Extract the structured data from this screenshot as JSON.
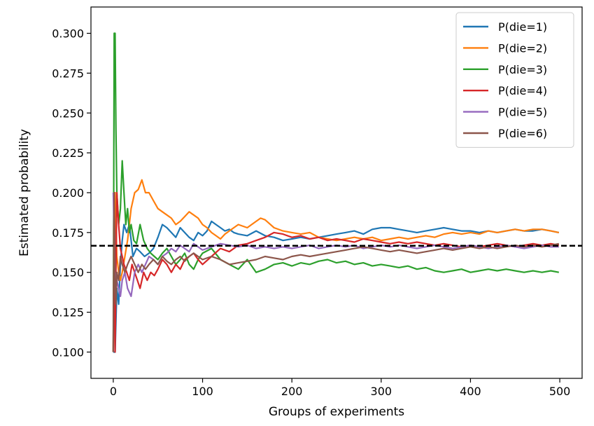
{
  "chart_data": {
    "type": "line",
    "xlabel": "Groups of experiments",
    "ylabel": "Estimated probability",
    "xlim": [
      -25,
      525
    ],
    "ylim": [
      0.0835,
      0.3165
    ],
    "xticks": [
      0,
      100,
      200,
      300,
      400,
      500
    ],
    "xtick_labels": [
      "0",
      "100",
      "200",
      "300",
      "400",
      "500"
    ],
    "yticks": [
      0.1,
      0.125,
      0.15,
      0.175,
      0.2,
      0.225,
      0.25,
      0.275,
      0.3
    ],
    "ytick_labels": [
      "0.100",
      "0.125",
      "0.150",
      "0.175",
      "0.200",
      "0.225",
      "0.250",
      "0.275",
      "0.300"
    ],
    "legend_position": "top-right",
    "reference_line": {
      "y": 0.1667,
      "style": "dashed",
      "color": "#000000"
    },
    "series": [
      {
        "name": "P(die=1)",
        "color": "#1f77b4",
        "x": [
          0,
          2,
          4,
          6,
          8,
          10,
          12,
          15,
          18,
          22,
          26,
          30,
          35,
          40,
          45,
          50,
          55,
          60,
          65,
          70,
          75,
          80,
          85,
          90,
          95,
          100,
          105,
          110,
          115,
          120,
          125,
          130,
          135,
          140,
          150,
          160,
          170,
          180,
          190,
          200,
          210,
          220,
          230,
          240,
          250,
          260,
          270,
          280,
          290,
          300,
          310,
          320,
          330,
          340,
          350,
          360,
          370,
          380,
          390,
          400,
          410,
          420,
          430,
          440,
          450,
          460,
          470,
          480,
          490,
          499
        ],
        "y": [
          0.1,
          0.1,
          0.14,
          0.13,
          0.155,
          0.17,
          0.18,
          0.175,
          0.18,
          0.16,
          0.165,
          0.163,
          0.16,
          0.162,
          0.165,
          0.172,
          0.18,
          0.178,
          0.175,
          0.172,
          0.178,
          0.175,
          0.172,
          0.17,
          0.175,
          0.173,
          0.176,
          0.182,
          0.18,
          0.178,
          0.176,
          0.177,
          0.175,
          0.174,
          0.173,
          0.176,
          0.173,
          0.172,
          0.17,
          0.171,
          0.172,
          0.171,
          0.172,
          0.173,
          0.174,
          0.175,
          0.176,
          0.174,
          0.177,
          0.178,
          0.178,
          0.177,
          0.176,
          0.175,
          0.176,
          0.177,
          0.178,
          0.177,
          0.176,
          0.176,
          0.175,
          0.176,
          0.175,
          0.176,
          0.177,
          0.176,
          0.176,
          0.177,
          0.176,
          0.175
        ]
      },
      {
        "name": "P(die=2)",
        "color": "#ff7f0e",
        "x": [
          0,
          2,
          4,
          6,
          8,
          10,
          13,
          16,
          20,
          24,
          28,
          32,
          36,
          40,
          45,
          50,
          55,
          60,
          65,
          70,
          75,
          80,
          85,
          90,
          95,
          100,
          105,
          110,
          115,
          120,
          125,
          130,
          135,
          140,
          150,
          160,
          165,
          170,
          180,
          190,
          200,
          210,
          220,
          230,
          240,
          250,
          260,
          270,
          280,
          290,
          300,
          310,
          320,
          330,
          340,
          350,
          360,
          370,
          380,
          390,
          400,
          410,
          420,
          430,
          440,
          450,
          460,
          470,
          480,
          490,
          499
        ],
        "y": [
          0.1,
          0.2,
          0.16,
          0.15,
          0.145,
          0.15,
          0.16,
          0.17,
          0.19,
          0.2,
          0.202,
          0.208,
          0.2,
          0.2,
          0.195,
          0.19,
          0.188,
          0.186,
          0.184,
          0.18,
          0.182,
          0.185,
          0.188,
          0.186,
          0.184,
          0.18,
          0.178,
          0.175,
          0.173,
          0.171,
          0.174,
          0.176,
          0.178,
          0.18,
          0.178,
          0.182,
          0.184,
          0.183,
          0.178,
          0.176,
          0.175,
          0.174,
          0.175,
          0.172,
          0.171,
          0.17,
          0.171,
          0.172,
          0.171,
          0.172,
          0.17,
          0.171,
          0.172,
          0.171,
          0.172,
          0.173,
          0.172,
          0.174,
          0.175,
          0.174,
          0.175,
          0.174,
          0.176,
          0.175,
          0.176,
          0.177,
          0.176,
          0.177,
          0.177,
          0.176,
          0.175
        ]
      },
      {
        "name": "P(die=3)",
        "color": "#2ca02c",
        "x": [
          0,
          1,
          2,
          3,
          4,
          6,
          8,
          10,
          12,
          14,
          16,
          18,
          20,
          23,
          26,
          30,
          34,
          38,
          42,
          46,
          50,
          55,
          60,
          65,
          70,
          75,
          80,
          85,
          90,
          95,
          100,
          110,
          120,
          130,
          140,
          150,
          160,
          170,
          180,
          190,
          200,
          210,
          220,
          230,
          240,
          250,
          260,
          270,
          280,
          290,
          300,
          310,
          320,
          330,
          340,
          350,
          360,
          370,
          380,
          390,
          400,
          410,
          420,
          430,
          440,
          450,
          460,
          470,
          480,
          490,
          499
        ],
        "y": [
          0.1,
          0.3,
          0.3,
          0.24,
          0.2,
          0.18,
          0.19,
          0.22,
          0.2,
          0.18,
          0.19,
          0.175,
          0.18,
          0.17,
          0.168,
          0.18,
          0.17,
          0.165,
          0.162,
          0.16,
          0.158,
          0.162,
          0.165,
          0.16,
          0.155,
          0.158,
          0.162,
          0.155,
          0.152,
          0.158,
          0.162,
          0.165,
          0.158,
          0.155,
          0.152,
          0.158,
          0.15,
          0.152,
          0.155,
          0.156,
          0.154,
          0.156,
          0.155,
          0.157,
          0.158,
          0.156,
          0.157,
          0.155,
          0.156,
          0.154,
          0.155,
          0.154,
          0.153,
          0.154,
          0.152,
          0.153,
          0.151,
          0.15,
          0.151,
          0.152,
          0.15,
          0.151,
          0.152,
          0.151,
          0.152,
          0.151,
          0.15,
          0.151,
          0.15,
          0.151,
          0.15
        ]
      },
      {
        "name": "P(die=4)",
        "color": "#d62728",
        "x": [
          0,
          1,
          2,
          3,
          4,
          6,
          8,
          10,
          12,
          15,
          18,
          21,
          24,
          27,
          30,
          34,
          38,
          42,
          46,
          50,
          55,
          60,
          65,
          70,
          75,
          80,
          85,
          90,
          95,
          100,
          110,
          120,
          130,
          140,
          150,
          160,
          170,
          180,
          190,
          200,
          210,
          220,
          230,
          240,
          250,
          260,
          270,
          280,
          290,
          300,
          310,
          320,
          330,
          340,
          350,
          360,
          370,
          380,
          390,
          400,
          410,
          420,
          430,
          440,
          450,
          460,
          470,
          480,
          490,
          499
        ],
        "y": [
          0.1,
          0.2,
          0.1,
          0.15,
          0.2,
          0.18,
          0.165,
          0.16,
          0.155,
          0.15,
          0.145,
          0.155,
          0.15,
          0.145,
          0.14,
          0.15,
          0.145,
          0.15,
          0.148,
          0.152,
          0.158,
          0.155,
          0.15,
          0.155,
          0.152,
          0.158,
          0.16,
          0.162,
          0.158,
          0.155,
          0.16,
          0.165,
          0.163,
          0.167,
          0.168,
          0.17,
          0.172,
          0.175,
          0.174,
          0.172,
          0.173,
          0.171,
          0.172,
          0.17,
          0.171,
          0.17,
          0.169,
          0.171,
          0.17,
          0.169,
          0.168,
          0.169,
          0.168,
          0.169,
          0.168,
          0.167,
          0.168,
          0.167,
          0.166,
          0.167,
          0.166,
          0.167,
          0.168,
          0.167,
          0.166,
          0.167,
          0.168,
          0.167,
          0.168,
          0.167
        ]
      },
      {
        "name": "P(die=5)",
        "color": "#9467bd",
        "x": [
          0,
          2,
          4,
          6,
          8,
          10,
          13,
          16,
          20,
          24,
          28,
          32,
          36,
          40,
          45,
          50,
          55,
          60,
          65,
          70,
          75,
          80,
          85,
          90,
          95,
          100,
          110,
          120,
          130,
          140,
          150,
          160,
          170,
          180,
          190,
          200,
          210,
          220,
          230,
          240,
          250,
          260,
          270,
          280,
          290,
          300,
          310,
          320,
          330,
          340,
          350,
          360,
          370,
          380,
          390,
          400,
          410,
          420,
          430,
          440,
          450,
          460,
          470,
          480,
          490,
          499
        ],
        "y": [
          0.2,
          0.15,
          0.145,
          0.14,
          0.135,
          0.145,
          0.15,
          0.14,
          0.135,
          0.15,
          0.155,
          0.15,
          0.155,
          0.16,
          0.158,
          0.155,
          0.16,
          0.162,
          0.165,
          0.163,
          0.167,
          0.165,
          0.163,
          0.168,
          0.166,
          0.164,
          0.166,
          0.168,
          0.167,
          0.166,
          0.167,
          0.165,
          0.166,
          0.165,
          0.166,
          0.165,
          0.166,
          0.167,
          0.165,
          0.166,
          0.167,
          0.166,
          0.167,
          0.165,
          0.166,
          0.167,
          0.166,
          0.167,
          0.166,
          0.165,
          0.166,
          0.167,
          0.166,
          0.165,
          0.166,
          0.167,
          0.166,
          0.165,
          0.166,
          0.167,
          0.166,
          0.165,
          0.166,
          0.167,
          0.166,
          0.166
        ]
      },
      {
        "name": "P(die=6)",
        "color": "#8c564b",
        "x": [
          0,
          1,
          2,
          3,
          4,
          6,
          8,
          10,
          13,
          16,
          20,
          24,
          28,
          32,
          36,
          40,
          45,
          50,
          55,
          60,
          65,
          70,
          75,
          80,
          85,
          90,
          95,
          100,
          110,
          120,
          130,
          140,
          150,
          160,
          170,
          180,
          190,
          200,
          210,
          220,
          230,
          240,
          250,
          260,
          270,
          280,
          290,
          300,
          310,
          320,
          330,
          340,
          350,
          360,
          370,
          380,
          390,
          400,
          410,
          420,
          430,
          440,
          450,
          460,
          470,
          480,
          490,
          499
        ],
        "y": [
          0.1,
          0.2,
          0.14,
          0.13,
          0.15,
          0.145,
          0.16,
          0.155,
          0.15,
          0.155,
          0.16,
          0.155,
          0.15,
          0.155,
          0.152,
          0.155,
          0.158,
          0.155,
          0.16,
          0.157,
          0.155,
          0.158,
          0.16,
          0.157,
          0.16,
          0.162,
          0.16,
          0.158,
          0.16,
          0.158,
          0.155,
          0.156,
          0.157,
          0.158,
          0.16,
          0.159,
          0.158,
          0.16,
          0.161,
          0.16,
          0.161,
          0.162,
          0.163,
          0.164,
          0.165,
          0.166,
          0.165,
          0.164,
          0.163,
          0.164,
          0.163,
          0.162,
          0.163,
          0.164,
          0.165,
          0.164,
          0.165,
          0.166,
          0.165,
          0.166,
          0.165,
          0.166,
          0.167,
          0.166,
          0.167,
          0.166,
          0.167,
          0.168
        ]
      }
    ]
  }
}
